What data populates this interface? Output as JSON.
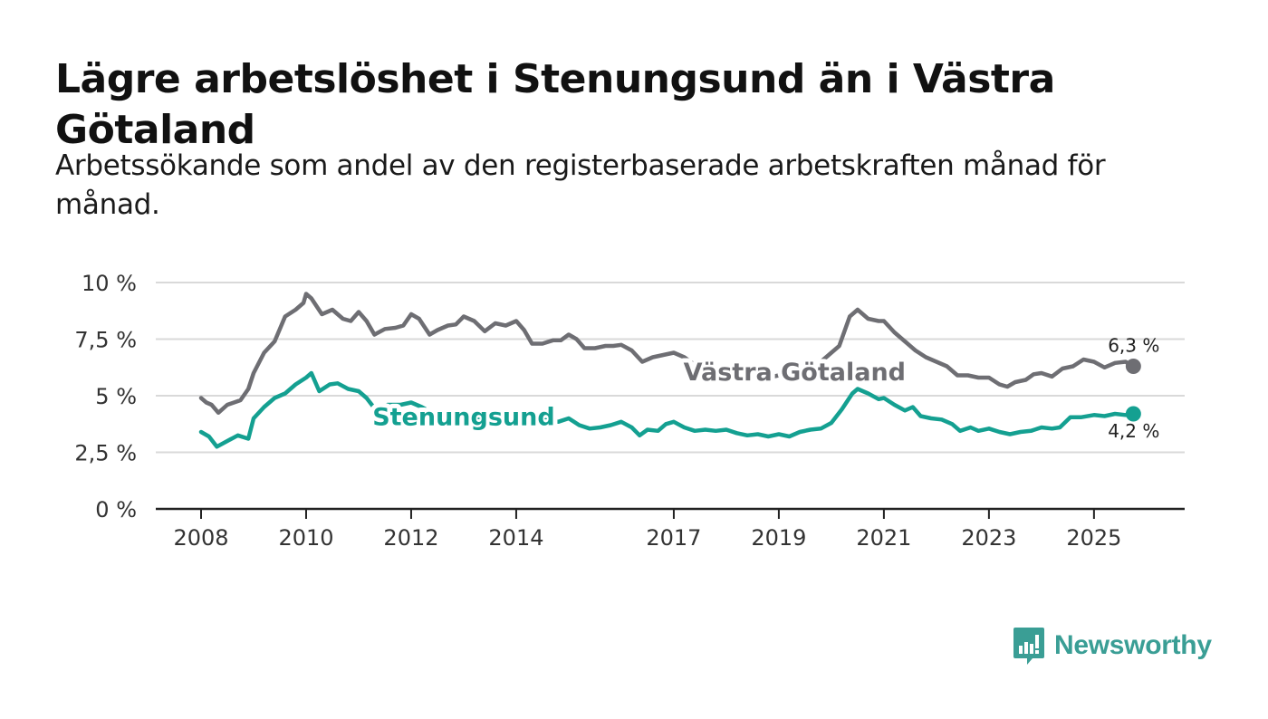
{
  "title": "Lägre arbetslöshet i Stenungsund än i Västra Götaland",
  "subtitle": "Arbetssökande som andel av den registerbaserade arbetskraften månad för månad.",
  "brand": {
    "name": "Newsworthy",
    "icon": "newsworthy-logo-icon"
  },
  "colors": {
    "stenungsund": "#14a091",
    "vastra": "#6e6e73",
    "grid": "#d9d9d9",
    "axis": "#222222"
  },
  "chart_data": {
    "type": "line",
    "title": "Lägre arbetslöshet i Stenungsund än i Västra Götaland",
    "xlabel": "",
    "ylabel": "",
    "xlim": [
      2008.0,
      2025.83
    ],
    "ylim": [
      0,
      10
    ],
    "y_ticks": [
      0,
      2.5,
      5,
      7.5,
      10
    ],
    "y_tick_labels": [
      "0 %",
      "2,5 %",
      "5 %",
      "7,5 %",
      "10 %"
    ],
    "x_ticks": [
      2008,
      2010,
      2012,
      2014,
      2017,
      2019,
      2021,
      2023,
      2025
    ],
    "x_tick_labels": [
      "2008",
      "2010",
      "2012",
      "2014",
      "2017",
      "2019",
      "2021",
      "2023",
      "2025"
    ],
    "grid": true,
    "legend": "inline labels",
    "series": [
      {
        "name": "Västra Götaland",
        "label_at": 2019.3,
        "end_label": "6,3 %",
        "end_value": 6.3,
        "points": [
          [
            2008.0,
            4.9
          ],
          [
            2008.1,
            4.7
          ],
          [
            2008.2,
            4.6
          ],
          [
            2008.33,
            4.25
          ],
          [
            2008.5,
            4.6
          ],
          [
            2008.75,
            4.8
          ],
          [
            2008.9,
            5.3
          ],
          [
            2009.0,
            6.0
          ],
          [
            2009.2,
            6.9
          ],
          [
            2009.4,
            7.4
          ],
          [
            2009.6,
            8.5
          ],
          [
            2009.8,
            8.8
          ],
          [
            2009.95,
            9.1
          ],
          [
            2010.0,
            9.5
          ],
          [
            2010.1,
            9.3
          ],
          [
            2010.3,
            8.6
          ],
          [
            2010.5,
            8.8
          ],
          [
            2010.7,
            8.4
          ],
          [
            2010.85,
            8.3
          ],
          [
            2011.0,
            8.7
          ],
          [
            2011.15,
            8.3
          ],
          [
            2011.3,
            7.7
          ],
          [
            2011.5,
            7.95
          ],
          [
            2011.7,
            8.0
          ],
          [
            2011.85,
            8.1
          ],
          [
            2012.0,
            8.6
          ],
          [
            2012.15,
            8.4
          ],
          [
            2012.35,
            7.7
          ],
          [
            2012.5,
            7.9
          ],
          [
            2012.7,
            8.1
          ],
          [
            2012.85,
            8.15
          ],
          [
            2013.0,
            8.5
          ],
          [
            2013.2,
            8.3
          ],
          [
            2013.4,
            7.85
          ],
          [
            2013.6,
            8.2
          ],
          [
            2013.8,
            8.1
          ],
          [
            2014.0,
            8.3
          ],
          [
            2014.15,
            7.9
          ],
          [
            2014.3,
            7.3
          ],
          [
            2014.5,
            7.3
          ],
          [
            2014.7,
            7.45
          ],
          [
            2014.85,
            7.45
          ],
          [
            2015.0,
            7.7
          ],
          [
            2015.15,
            7.5
          ],
          [
            2015.3,
            7.1
          ],
          [
            2015.5,
            7.1
          ],
          [
            2015.7,
            7.2
          ],
          [
            2015.85,
            7.2
          ],
          [
            2016.0,
            7.25
          ],
          [
            2016.2,
            7.0
          ],
          [
            2016.4,
            6.5
          ],
          [
            2016.6,
            6.7
          ],
          [
            2016.8,
            6.8
          ],
          [
            2017.0,
            6.9
          ],
          [
            2017.2,
            6.7
          ],
          [
            2017.35,
            6.45
          ],
          [
            2017.5,
            6.3
          ],
          [
            2017.65,
            6.45
          ],
          [
            2017.8,
            6.3
          ],
          [
            2018.0,
            6.1
          ],
          [
            2018.2,
            6.05
          ],
          [
            2018.4,
            6.0
          ],
          [
            2018.6,
            5.9
          ],
          [
            2018.8,
            5.8
          ],
          [
            2019.0,
            5.9
          ],
          [
            2019.2,
            5.8
          ],
          [
            2019.4,
            6.0
          ],
          [
            2019.6,
            6.2
          ],
          [
            2019.8,
            6.5
          ],
          [
            2020.0,
            6.9
          ],
          [
            2020.15,
            7.2
          ],
          [
            2020.35,
            8.5
          ],
          [
            2020.5,
            8.8
          ],
          [
            2020.7,
            8.4
          ],
          [
            2020.9,
            8.3
          ],
          [
            2021.0,
            8.3
          ],
          [
            2021.2,
            7.8
          ],
          [
            2021.4,
            7.4
          ],
          [
            2021.6,
            7.0
          ],
          [
            2021.8,
            6.7
          ],
          [
            2022.0,
            6.5
          ],
          [
            2022.2,
            6.3
          ],
          [
            2022.4,
            5.9
          ],
          [
            2022.6,
            5.9
          ],
          [
            2022.8,
            5.8
          ],
          [
            2023.0,
            5.8
          ],
          [
            2023.2,
            5.5
          ],
          [
            2023.35,
            5.4
          ],
          [
            2023.5,
            5.6
          ],
          [
            2023.7,
            5.7
          ],
          [
            2023.85,
            5.95
          ],
          [
            2024.0,
            6.0
          ],
          [
            2024.2,
            5.85
          ],
          [
            2024.4,
            6.2
          ],
          [
            2024.6,
            6.3
          ],
          [
            2024.8,
            6.6
          ],
          [
            2025.0,
            6.5
          ],
          [
            2025.2,
            6.25
          ],
          [
            2025.4,
            6.45
          ],
          [
            2025.6,
            6.5
          ],
          [
            2025.75,
            6.3
          ]
        ]
      },
      {
        "name": "Stenungsund",
        "label_at": 2013.0,
        "end_label": "4,2 %",
        "end_value": 4.2,
        "points": [
          [
            2008.0,
            3.4
          ],
          [
            2008.15,
            3.2
          ],
          [
            2008.3,
            2.75
          ],
          [
            2008.5,
            3.0
          ],
          [
            2008.7,
            3.25
          ],
          [
            2008.9,
            3.1
          ],
          [
            2009.0,
            4.0
          ],
          [
            2009.2,
            4.5
          ],
          [
            2009.4,
            4.9
          ],
          [
            2009.6,
            5.1
          ],
          [
            2009.8,
            5.5
          ],
          [
            2010.0,
            5.8
          ],
          [
            2010.1,
            6.0
          ],
          [
            2010.25,
            5.2
          ],
          [
            2010.45,
            5.5
          ],
          [
            2010.6,
            5.55
          ],
          [
            2010.8,
            5.3
          ],
          [
            2011.0,
            5.2
          ],
          [
            2011.15,
            4.9
          ],
          [
            2011.35,
            4.3
          ],
          [
            2011.55,
            4.6
          ],
          [
            2011.8,
            4.6
          ],
          [
            2012.0,
            4.7
          ],
          [
            2012.2,
            4.5
          ],
          [
            2012.4,
            4.25
          ],
          [
            2012.6,
            4.2
          ],
          [
            2012.8,
            4.15
          ],
          [
            2013.0,
            4.1
          ],
          [
            2013.2,
            4.0
          ],
          [
            2013.4,
            4.0
          ],
          [
            2013.6,
            3.9
          ],
          [
            2013.8,
            3.85
          ],
          [
            2014.0,
            3.8
          ],
          [
            2014.2,
            4.0
          ],
          [
            2014.4,
            3.9
          ],
          [
            2014.6,
            3.95
          ],
          [
            2014.8,
            3.85
          ],
          [
            2015.0,
            4.0
          ],
          [
            2015.2,
            3.7
          ],
          [
            2015.4,
            3.55
          ],
          [
            2015.6,
            3.6
          ],
          [
            2015.8,
            3.7
          ],
          [
            2016.0,
            3.85
          ],
          [
            2016.2,
            3.6
          ],
          [
            2016.35,
            3.25
          ],
          [
            2016.5,
            3.5
          ],
          [
            2016.7,
            3.45
          ],
          [
            2016.85,
            3.75
          ],
          [
            2017.0,
            3.85
          ],
          [
            2017.2,
            3.6
          ],
          [
            2017.4,
            3.45
          ],
          [
            2017.6,
            3.5
          ],
          [
            2017.8,
            3.45
          ],
          [
            2018.0,
            3.5
          ],
          [
            2018.2,
            3.35
          ],
          [
            2018.4,
            3.25
          ],
          [
            2018.6,
            3.3
          ],
          [
            2018.8,
            3.2
          ],
          [
            2019.0,
            3.3
          ],
          [
            2019.2,
            3.2
          ],
          [
            2019.4,
            3.4
          ],
          [
            2019.6,
            3.5
          ],
          [
            2019.8,
            3.55
          ],
          [
            2020.0,
            3.8
          ],
          [
            2020.2,
            4.4
          ],
          [
            2020.4,
            5.1
          ],
          [
            2020.5,
            5.3
          ],
          [
            2020.7,
            5.1
          ],
          [
            2020.9,
            4.85
          ],
          [
            2021.0,
            4.9
          ],
          [
            2021.2,
            4.6
          ],
          [
            2021.4,
            4.35
          ],
          [
            2021.55,
            4.5
          ],
          [
            2021.7,
            4.1
          ],
          [
            2021.9,
            4.0
          ],
          [
            2022.1,
            3.95
          ],
          [
            2022.3,
            3.75
          ],
          [
            2022.45,
            3.45
          ],
          [
            2022.65,
            3.6
          ],
          [
            2022.8,
            3.45
          ],
          [
            2023.0,
            3.55
          ],
          [
            2023.2,
            3.4
          ],
          [
            2023.4,
            3.3
          ],
          [
            2023.6,
            3.4
          ],
          [
            2023.8,
            3.45
          ],
          [
            2024.0,
            3.6
          ],
          [
            2024.2,
            3.55
          ],
          [
            2024.35,
            3.6
          ],
          [
            2024.55,
            4.05
          ],
          [
            2024.75,
            4.05
          ],
          [
            2025.0,
            4.15
          ],
          [
            2025.2,
            4.1
          ],
          [
            2025.4,
            4.2
          ],
          [
            2025.6,
            4.15
          ],
          [
            2025.75,
            4.2
          ]
        ]
      }
    ]
  }
}
